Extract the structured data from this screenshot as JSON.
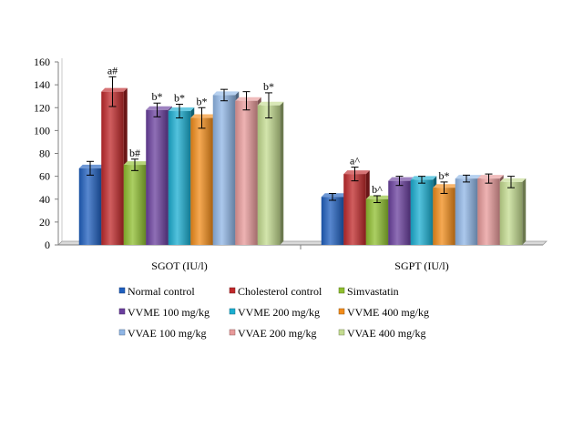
{
  "chart_data": {
    "type": "bar",
    "categories": [
      "SGOT (IU/l)",
      "SGPT (IU/l)"
    ],
    "ylim": [
      0,
      160
    ],
    "yticks": [
      0,
      20,
      40,
      60,
      80,
      100,
      120,
      140,
      160
    ],
    "grid": false,
    "legend_position": "bottom",
    "series": [
      {
        "name": "Normal control",
        "color": "#1f5fbf",
        "values": [
          67,
          42
        ],
        "errors": [
          6,
          3
        ],
        "annotations": [
          "",
          ""
        ]
      },
      {
        "name": "Cholesterol  control",
        "color": "#c0282a",
        "values": [
          134,
          62
        ],
        "errors": [
          13,
          6
        ],
        "annotations": [
          "a#",
          "a^"
        ]
      },
      {
        "name": "Simvastatin",
        "color": "#8fbf2f",
        "values": [
          70,
          40
        ],
        "errors": [
          5,
          3
        ],
        "annotations": [
          "b#",
          "b^"
        ]
      },
      {
        "name": "VVME 100 mg/kg",
        "color": "#6a3f9e",
        "values": [
          118,
          56
        ],
        "errors": [
          6,
          4
        ],
        "annotations": [
          "b*",
          ""
        ]
      },
      {
        "name": "VVME 200 mg/kg",
        "color": "#1aaed1",
        "values": [
          117,
          57
        ],
        "errors": [
          6,
          3
        ],
        "annotations": [
          "b*",
          ""
        ]
      },
      {
        "name": "VVME 400 mg/kg",
        "color": "#f28c1a",
        "values": [
          111,
          50
        ],
        "errors": [
          9,
          5
        ],
        "annotations": [
          "b*",
          "b*"
        ]
      },
      {
        "name": "VVAE 100 mg/kg",
        "color": "#8fb6e6",
        "values": [
          131,
          58
        ],
        "errors": [
          5,
          3
        ],
        "annotations": [
          "",
          ""
        ]
      },
      {
        "name": "VVAE 200 mg/kg",
        "color": "#e89a9a",
        "values": [
          126,
          58
        ],
        "errors": [
          8,
          4
        ],
        "annotations": [
          "",
          ""
        ]
      },
      {
        "name": "VVAE 400 mg/kg",
        "color": "#c4dc90",
        "values": [
          122,
          55
        ],
        "errors": [
          11,
          5
        ],
        "annotations": [
          "b*",
          ""
        ]
      }
    ]
  }
}
